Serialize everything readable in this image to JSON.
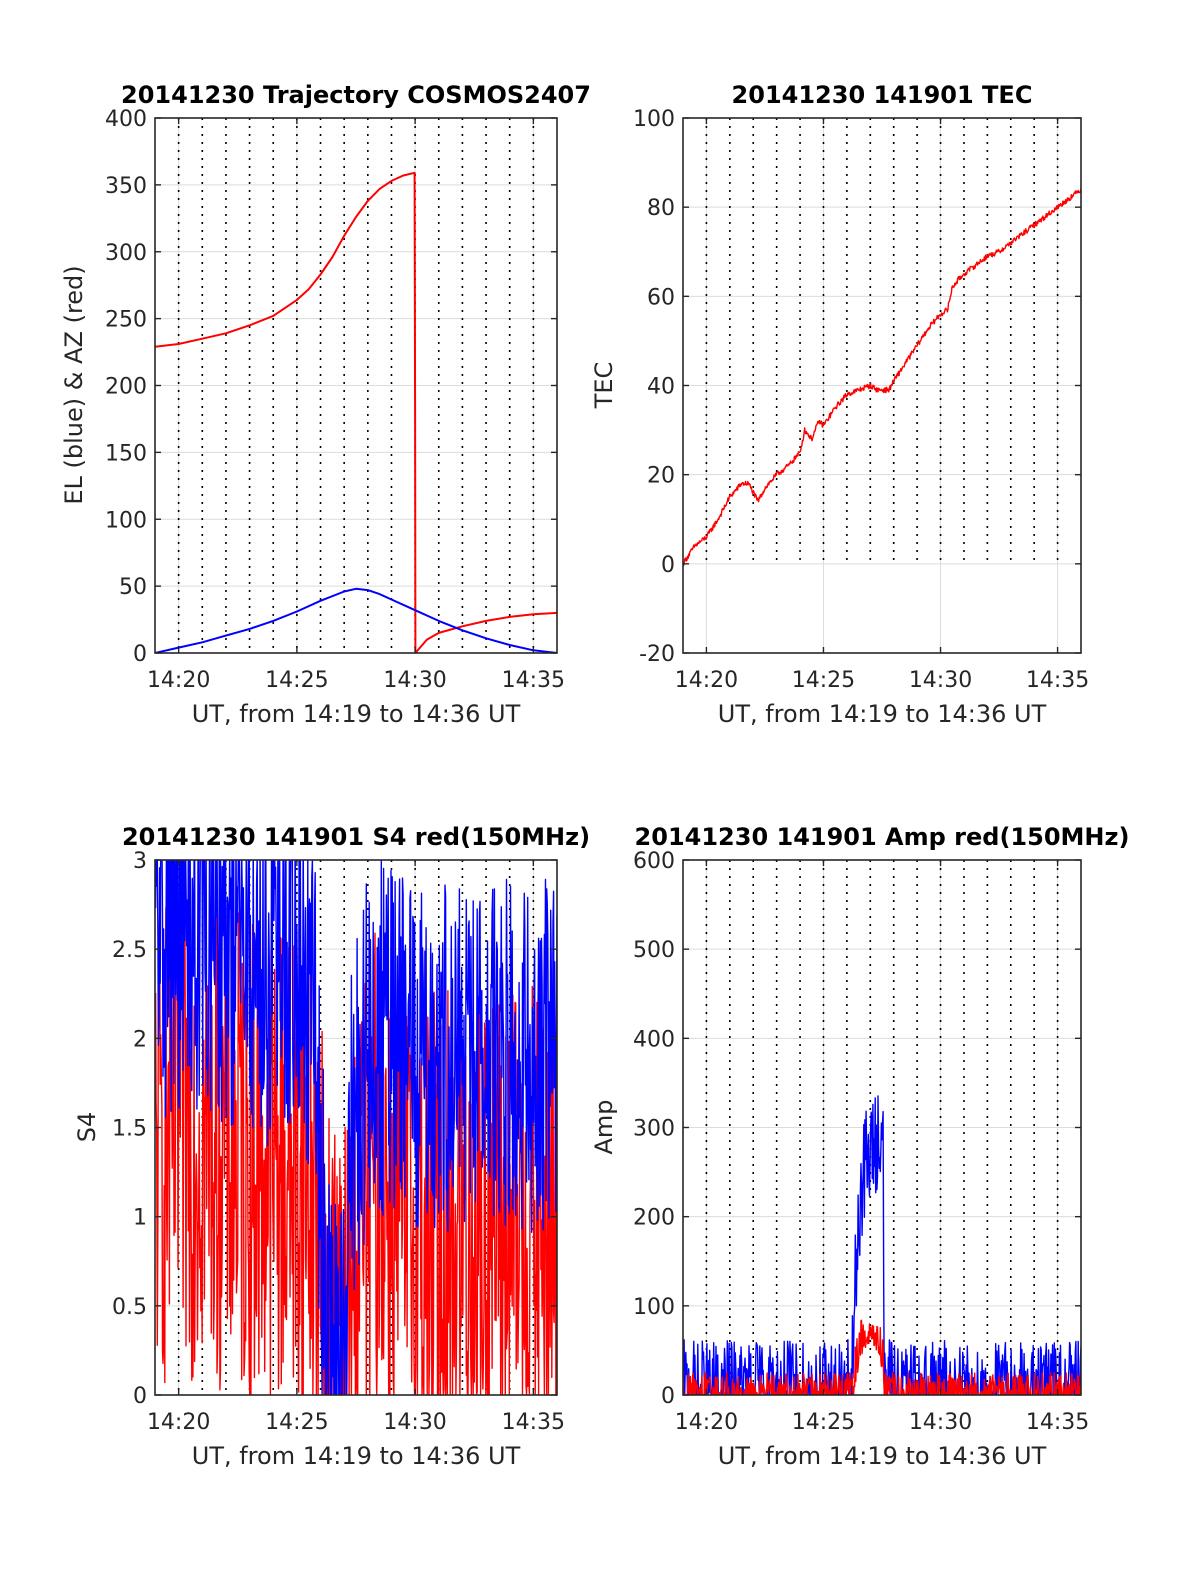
{
  "figure": {
    "background": "#ffffff"
  },
  "colors": {
    "red": "#ff0000",
    "blue": "#0000ff",
    "grid": "#dcdcdc",
    "dotted": "#000000",
    "axis": "#262626"
  },
  "chart_data": [
    {
      "id": "trajectory",
      "type": "line",
      "title": "20141230 Trajectory COSMOS2407",
      "xlabel": "UT, from 14:19 to 14:36 UT",
      "ylabel": "EL (blue) & AZ (red)",
      "xlim": [
        0,
        17
      ],
      "ylim": [
        0,
        400
      ],
      "xticks": [
        1,
        6,
        11,
        16
      ],
      "xticklabels": [
        "14:20",
        "14:25",
        "14:30",
        "14:35"
      ],
      "yticks": [
        0,
        50,
        100,
        150,
        200,
        250,
        300,
        350,
        400
      ],
      "yticklabels": [
        "0",
        "50",
        "100",
        "150",
        "200",
        "250",
        "300",
        "350",
        "400"
      ],
      "vlines": [
        1,
        2,
        3,
        4,
        5,
        6,
        7,
        8,
        9,
        10,
        11,
        12,
        13,
        14,
        15,
        16
      ],
      "series": [
        {
          "name": "AZ",
          "color": "#ff0000",
          "x": [
            0,
            1,
            2,
            3,
            4,
            5,
            6,
            6.5,
            7,
            7.5,
            8,
            8.5,
            9,
            9.5,
            10,
            10.5,
            10.98,
            11,
            11.01,
            11.5,
            12,
            13,
            14,
            15,
            16,
            17
          ],
          "y": [
            229,
            231,
            235,
            239,
            245,
            252,
            264,
            272,
            283,
            296,
            312,
            326,
            338,
            347,
            353,
            357,
            359,
            180,
            0,
            10,
            15,
            20,
            24,
            27,
            29,
            30
          ]
        },
        {
          "name": "EL",
          "color": "#0000ff",
          "x": [
            0,
            1,
            2,
            3,
            4,
            5,
            6,
            7,
            8,
            8.5,
            9,
            9.5,
            10,
            11,
            12,
            13,
            14,
            15,
            16,
            17
          ],
          "y": [
            0,
            4,
            8,
            13,
            18,
            24,
            31,
            39,
            46,
            48,
            47,
            44,
            40,
            32,
            24,
            17,
            11,
            6,
            2,
            0
          ]
        }
      ]
    },
    {
      "id": "tec",
      "type": "line",
      "title": "20141230 141901 TEC",
      "xlabel": "UT, from 14:19 to 14:36 UT",
      "ylabel": "TEC",
      "xlim": [
        0,
        17
      ],
      "ylim": [
        -20,
        100
      ],
      "xticks": [
        1,
        6,
        11,
        16
      ],
      "xticklabels": [
        "14:20",
        "14:25",
        "14:30",
        "14:35"
      ],
      "yticks": [
        -20,
        0,
        20,
        40,
        60,
        80,
        100
      ],
      "yticklabels": [
        "-20",
        "0",
        "20",
        "40",
        "60",
        "80",
        "100"
      ],
      "vlines": [
        1,
        2,
        3,
        4,
        5,
        6,
        7,
        8,
        9,
        10,
        11,
        12,
        13,
        14,
        15,
        16
      ],
      "dotted_clip_min": 0,
      "series": [
        {
          "name": "TEC",
          "color": "#ff0000",
          "noise": 0.6,
          "x": [
            0,
            0.5,
            1,
            1.5,
            2,
            2.5,
            2.8,
            3.2,
            3.5,
            4,
            4.5,
            5,
            5.2,
            5.5,
            5.8,
            6,
            6.5,
            7,
            7.5,
            8,
            8.3,
            8.8,
            9,
            9.5,
            10,
            10.5,
            11,
            11.3,
            11.5,
            11.8,
            12,
            12.5,
            13,
            13.5,
            14,
            14.5,
            15,
            15.5,
            16,
            16.5,
            17
          ],
          "y": [
            0,
            4,
            6,
            10,
            15,
            18,
            18,
            14,
            17,
            20,
            22,
            25,
            30,
            28,
            32,
            31,
            35,
            38,
            39,
            40,
            39,
            39,
            41,
            45,
            49,
            53,
            56,
            57,
            62,
            64,
            65,
            67,
            69,
            70,
            72,
            74,
            76,
            78,
            80,
            82,
            84
          ]
        }
      ]
    },
    {
      "id": "s4",
      "type": "line",
      "title": "20141230 141901 S4 red(150MHz)",
      "xlabel": "UT, from 14:19 to 14:36 UT",
      "ylabel": "S4",
      "xlim": [
        0,
        17
      ],
      "ylim": [
        0,
        3
      ],
      "xticks": [
        1,
        6,
        11,
        16
      ],
      "xticklabels": [
        "14:20",
        "14:25",
        "14:30",
        "14:35"
      ],
      "yticks": [
        0,
        0.5,
        1,
        1.5,
        2,
        2.5,
        3
      ],
      "yticklabels": [
        "0",
        "0.5",
        "1",
        "1.5",
        "2",
        "2.5",
        "3"
      ],
      "vlines": [
        1,
        2,
        3,
        4,
        5,
        6,
        7,
        8,
        9,
        10,
        11,
        12,
        13,
        14,
        15,
        16
      ],
      "series": [
        {
          "name": "S4 red",
          "color": "#ff0000",
          "noise": 1.4,
          "x": [
            0,
            2,
            4,
            6,
            6.8,
            7,
            7.5,
            7.9,
            8.1,
            8.3,
            8.6,
            9,
            9.5,
            10,
            11,
            12,
            14,
            17
          ],
          "y": [
            1.4,
            1.5,
            1.3,
            1.3,
            1.1,
            0.7,
            0.25,
            0.2,
            0.2,
            0.6,
            0.9,
            1.1,
            1.3,
            1.1,
            0.9,
            0.9,
            0.9,
            0.9
          ]
        },
        {
          "name": "S4 blue",
          "color": "#0000ff",
          "noise": 1.0,
          "x": [
            0,
            2,
            4,
            6,
            6.8,
            7,
            7.5,
            7.9,
            8.1,
            8.3,
            8.6,
            9,
            9.5,
            10,
            11,
            12,
            14,
            17
          ],
          "y": [
            2.5,
            2.6,
            2.4,
            2.4,
            2.0,
            1.1,
            0.2,
            0.15,
            0.15,
            1.4,
            1.7,
            1.9,
            2.0,
            2.0,
            1.9,
            1.9,
            1.9,
            1.9
          ]
        }
      ]
    },
    {
      "id": "amp",
      "type": "line",
      "title": "20141230 141901 Amp red(150MHz)",
      "xlabel": "UT, from 14:19 to 14:36 UT",
      "ylabel": "Amp",
      "xlim": [
        0,
        17
      ],
      "ylim": [
        0,
        600
      ],
      "xticks": [
        1,
        6,
        11,
        16
      ],
      "xticklabels": [
        "14:20",
        "14:25",
        "14:30",
        "14:35"
      ],
      "yticks": [
        0,
        100,
        200,
        300,
        400,
        500,
        600
      ],
      "yticklabels": [
        "0",
        "100",
        "200",
        "300",
        "400",
        "500",
        "600"
      ],
      "vlines": [
        1,
        2,
        3,
        4,
        5,
        6,
        7,
        8,
        9,
        10,
        11,
        12,
        13,
        14,
        15,
        16
      ],
      "series": [
        {
          "name": "Amp blue",
          "color": "#0000ff",
          "noise": 60,
          "x": [
            0,
            7.2,
            7.25,
            7.4,
            7.6,
            7.8,
            8.0,
            8.2,
            8.4,
            8.55,
            8.6,
            17
          ],
          "y": [
            2,
            2,
            40,
            150,
            230,
            260,
            270,
            280,
            300,
            270,
            2,
            2
          ]
        },
        {
          "name": "Amp red",
          "color": "#ff0000",
          "noise": 25,
          "x": [
            0,
            7.2,
            7.25,
            7.4,
            7.6,
            7.8,
            8.0,
            8.2,
            8.4,
            8.55,
            8.6,
            17
          ],
          "y": [
            0,
            0,
            10,
            40,
            60,
            75,
            70,
            55,
            60,
            50,
            0,
            0
          ]
        }
      ]
    }
  ]
}
